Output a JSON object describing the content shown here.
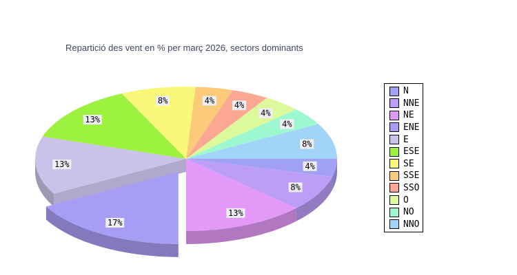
{
  "title": {
    "text": "Repartició des vent en % per març 2026, sectors dominants",
    "color": "#3d4660"
  },
  "chart_data": {
    "type": "pie",
    "style": "3d-exploded",
    "title": "Repartició des vent en % per març 2026, sectors dominants",
    "unit": "%",
    "direction": "clockwise",
    "start_angle_deg_from_east": 0,
    "legend_position": "right",
    "label_format": "{value}%",
    "label_bg": "#efeff5",
    "label_color": "#000000",
    "series": [
      {
        "label": "N",
        "value": 4,
        "color": "#a0a0f4",
        "exploded": false
      },
      {
        "label": "NNE",
        "value": 8,
        "color": "#bd9ef7",
        "exploded": false
      },
      {
        "label": "NE",
        "value": 13,
        "color": "#e399f7",
        "exploded": false
      },
      {
        "label": "ENE",
        "value": 17,
        "color": "#a89df4",
        "exploded": true
      },
      {
        "label": "E",
        "value": 13,
        "color": "#cbc2e9",
        "exploded": false
      },
      {
        "label": "ESE",
        "value": 13,
        "color": "#9df240",
        "exploded": false
      },
      {
        "label": "SE",
        "value": 8,
        "color": "#f9f878",
        "exploded": false
      },
      {
        "label": "SSE",
        "value": 4,
        "color": "#fbcb79",
        "exploded": false
      },
      {
        "label": "SSO",
        "value": 4,
        "color": "#fba793",
        "exploded": false
      },
      {
        "label": "O",
        "value": 4,
        "color": "#dcf99c",
        "exploded": false
      },
      {
        "label": "NO",
        "value": 4,
        "color": "#9df8cf",
        "exploded": false
      },
      {
        "label": "NNO",
        "value": 8,
        "color": "#a2d4fa",
        "exploded": false
      }
    ]
  },
  "legend": {
    "border_color": "#000000"
  }
}
